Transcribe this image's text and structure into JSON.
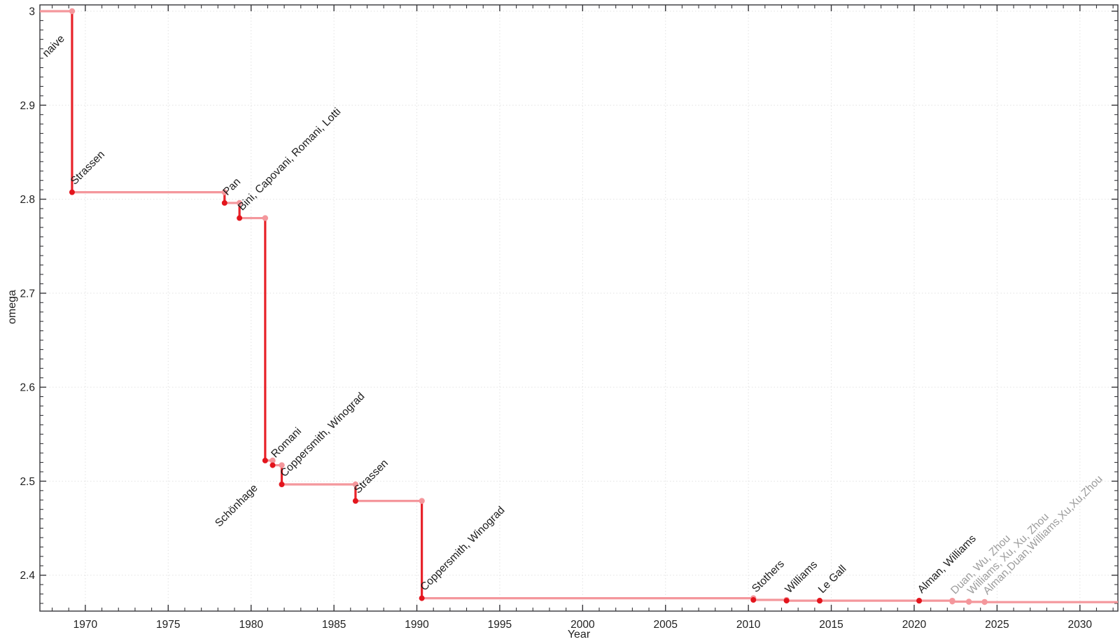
{
  "chart_data": {
    "type": "line",
    "style": "step",
    "title": "",
    "xlabel": "Year",
    "ylabel": "omega",
    "grid": true,
    "legend": "none",
    "x_axis": {
      "min": 1967.26,
      "max": 2032.29,
      "major_ticks": [
        1970,
        1975,
        1980,
        1985,
        1990,
        1995,
        2000,
        2005,
        2010,
        2015,
        2020,
        2025,
        2030
      ],
      "tick_labels": [
        "1970",
        "1975",
        "1980",
        "1985",
        "1990",
        "1995",
        "2000",
        "2005",
        "2010",
        "2015",
        "2020",
        "2025",
        "2030"
      ],
      "minor_step": 1
    },
    "y_axis": {
      "min": 2.3618,
      "max": 3.0067,
      "major_ticks": [
        2.4,
        2.5,
        2.6,
        2.7,
        2.8,
        2.9,
        3.0
      ],
      "tick_labels": [
        "2.4",
        "2.5",
        "2.6",
        "2.7",
        "2.8",
        "2.9",
        "3"
      ],
      "minor_step": 0.01
    },
    "points": [
      {
        "label": "naive",
        "year": null,
        "x": 1969.2,
        "omega": 3.0,
        "align": "end",
        "dim": false
      },
      {
        "label": "Strassen",
        "year": 1969,
        "x": 1969.2,
        "omega": 2.8074,
        "align": "start",
        "dim": false
      },
      {
        "label": "Pan",
        "year": 1978,
        "x": 1978.4,
        "omega": 2.796,
        "align": "start",
        "dim": false
      },
      {
        "label": "Bini, Capovani, Romani, Lotti",
        "year": 1979,
        "x": 1979.3,
        "omega": 2.7799,
        "align": "start",
        "dim": false
      },
      {
        "label": "Schönhage",
        "year": 1981,
        "x": 1980.85,
        "omega": 2.522,
        "align": "end",
        "dim": false
      },
      {
        "label": "Romani",
        "year": 1982,
        "x": 1981.3,
        "omega": 2.517,
        "align": "start",
        "dim": false
      },
      {
        "label": "Coppersmith, Winograd",
        "year": 1982,
        "x": 1981.85,
        "omega": 2.4966,
        "align": "start",
        "dim": false
      },
      {
        "label": "Strassen",
        "year": 1986,
        "x": 1986.3,
        "omega": 2.479,
        "align": "start",
        "dim": false
      },
      {
        "label": "Coppersmith, Winograd",
        "year": 1990,
        "x": 1990.3,
        "omega": 2.3755,
        "align": "start",
        "dim": false
      },
      {
        "label": "Stothers",
        "year": 2010,
        "x": 2010.3,
        "omega": 2.3737,
        "align": "start",
        "dim": false
      },
      {
        "label": "Williams",
        "year": 2012,
        "x": 2012.3,
        "omega": 2.3729,
        "align": "start",
        "dim": false
      },
      {
        "label": "Le Gall",
        "year": 2014,
        "x": 2014.3,
        "omega": 2.3728639,
        "align": "start",
        "dim": false
      },
      {
        "label": "Alman, Williams",
        "year": 2020,
        "x": 2020.3,
        "omega": 2.3728596,
        "align": "start",
        "dim": false
      },
      {
        "label": "Duan, Wu, Zhou",
        "year": 2022,
        "x": 2022.3,
        "omega": 2.371866,
        "align": "start",
        "dim": true
      },
      {
        "label": "Williams, Xu, Xu, Zhou",
        "year": 2023,
        "x": 2023.3,
        "omega": 2.371552,
        "align": "start",
        "dim": true
      },
      {
        "label": "Alman,Duan,Williams,Xu,Xu,Zhou",
        "year": 2024,
        "x": 2024.25,
        "omega": 2.371339,
        "align": "start",
        "dim": true
      }
    ],
    "colors": {
      "line_dark": "#e8232a",
      "line_light": "#f4979c",
      "marker_dark": "#e3151d",
      "marker_light": "#f4979c",
      "grid": "#e2e2e2",
      "frame": "#36363a",
      "tick_text": "#1f1f1f",
      "label": "#1c1c1c",
      "label_dim": "#9c9c9c",
      "background": "#ffffff"
    }
  }
}
